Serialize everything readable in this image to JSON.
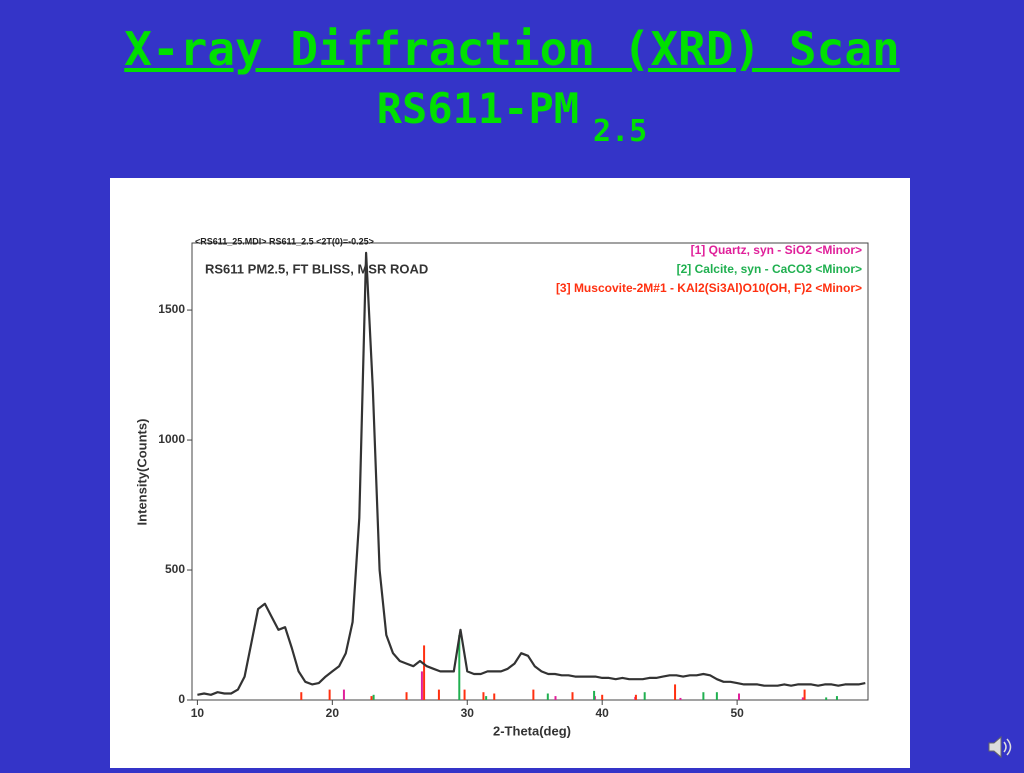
{
  "slide": {
    "title": "X-ray Diffraction (XRD) Scan",
    "subtitle": "RS611-PM",
    "subtitle_subscript": "2.5"
  },
  "chart_data": {
    "type": "line",
    "header": "<RS611_25.MDI> RS611_2.5 <2T(0)=-0.25>",
    "annotation": "RS611 PM2.5, FT BLISS, MSR ROAD",
    "xlabel": "2-Theta(deg)",
    "ylabel": "Intensity(Counts)",
    "color": "#333333",
    "xlim": [
      9.6,
      59.7
    ],
    "ylim": [
      0,
      1758
    ],
    "xticks": [
      10,
      20,
      30,
      40,
      50
    ],
    "yticks": [
      0,
      500,
      1000,
      1500
    ],
    "x": [
      10,
      10.5,
      11,
      11.5,
      12,
      12.5,
      13,
      13.5,
      14,
      14.5,
      15,
      15.5,
      16,
      16.5,
      17,
      17.5,
      18,
      18.5,
      19,
      19.5,
      20,
      20.5,
      21,
      21.5,
      22,
      22.5,
      23,
      23.5,
      24,
      24.5,
      25,
      25.5,
      26,
      26.5,
      27,
      27.5,
      28,
      28.5,
      29,
      29.5,
      30,
      30.5,
      31,
      31.5,
      32,
      32.5,
      33,
      33.5,
      34,
      34.5,
      35,
      35.5,
      36,
      36.5,
      37,
      37.5,
      38,
      38.5,
      39,
      39.5,
      40,
      40.5,
      41,
      41.5,
      42,
      42.5,
      43,
      43.5,
      44,
      44.5,
      45,
      45.5,
      46,
      46.5,
      47,
      47.5,
      48,
      48.5,
      49,
      49.5,
      50,
      50.5,
      51,
      51.5,
      52,
      52.5,
      53,
      53.5,
      54,
      54.5,
      55,
      55.5,
      56,
      56.5,
      57,
      57.5,
      58,
      58.5,
      59,
      59.5
    ],
    "values": [
      20,
      25,
      20,
      30,
      25,
      25,
      40,
      90,
      220,
      350,
      370,
      320,
      270,
      280,
      200,
      110,
      70,
      60,
      65,
      90,
      110,
      130,
      180,
      300,
      700,
      1720,
      1200,
      500,
      250,
      180,
      150,
      140,
      130,
      150,
      130,
      120,
      110,
      110,
      110,
      270,
      110,
      100,
      100,
      110,
      110,
      110,
      120,
      140,
      180,
      170,
      130,
      110,
      100,
      100,
      95,
      95,
      90,
      90,
      90,
      90,
      85,
      85,
      80,
      85,
      80,
      80,
      80,
      85,
      85,
      90,
      95,
      95,
      90,
      95,
      95,
      100,
      95,
      80,
      70,
      70,
      65,
      60,
      60,
      60,
      55,
      55,
      55,
      60,
      55,
      60,
      60,
      60,
      55,
      60,
      60,
      55,
      60,
      60,
      60,
      65
    ],
    "phases": [
      {
        "name": "[1] Quartz, syn - SiO2 <Minor>",
        "color": "#e0209a",
        "x": [
          20.86,
          26.64,
          36.54,
          39.46,
          42.45,
          45.8,
          50.14,
          54.87
        ],
        "values": [
          40,
          110,
          15,
          15,
          12,
          8,
          25,
          10
        ]
      },
      {
        "name": "[2] Calcite, syn - CaCO3 <Minor>",
        "color": "#20b050",
        "x": [
          23.06,
          29.41,
          31.4,
          35.97,
          39.4,
          43.15,
          47.5,
          48.5,
          56.6,
          57.4
        ],
        "values": [
          20,
          250,
          15,
          25,
          35,
          30,
          30,
          30,
          10,
          15
        ]
      },
      {
        "name": "[3] Muscovite-2M#1 - KAl2(Si3Al)O10(OH, F)2 <Minor>",
        "color": "#ff3010",
        "x": [
          17.7,
          19.8,
          22.9,
          25.5,
          26.8,
          27.9,
          29.8,
          31.2,
          32.0,
          34.9,
          37.8,
          40.0,
          42.5,
          45.4,
          55.0
        ],
        "values": [
          30,
          40,
          15,
          30,
          210,
          40,
          40,
          30,
          25,
          40,
          30,
          20,
          20,
          60,
          40
        ]
      }
    ]
  }
}
